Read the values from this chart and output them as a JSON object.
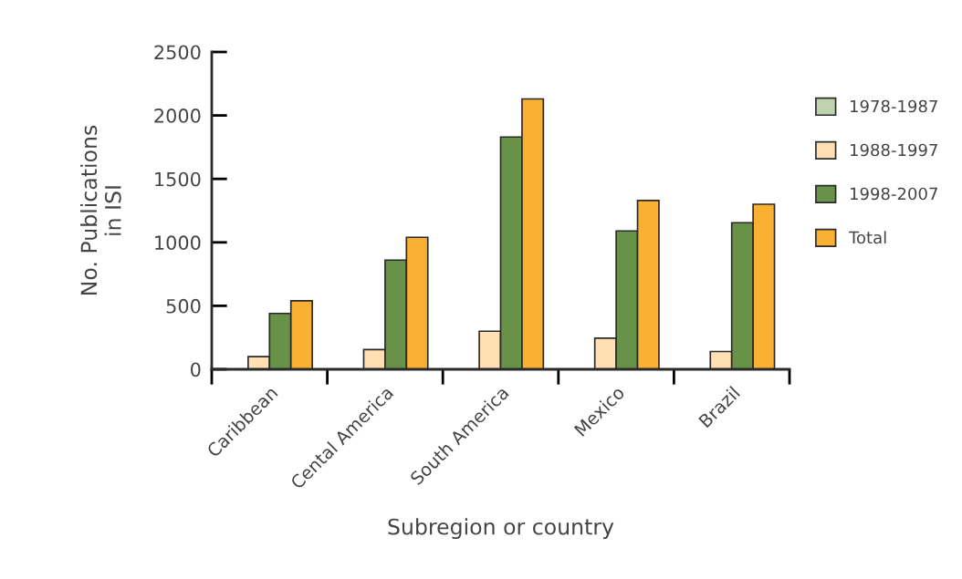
{
  "chart_data": {
    "type": "bar",
    "xlabel": "Subregion or country",
    "ylabel": "No. Publications\nin ISI",
    "categories": [
      "Caribbean",
      "Cental America",
      "South America",
      "Mexico",
      "Brazil"
    ],
    "series": [
      {
        "name": "1978-1987",
        "color": "#c0d3b0",
        "values": [
          null,
          null,
          null,
          null,
          null
        ]
      },
      {
        "name": "1988-1997",
        "color": "#ffdfb3",
        "values": [
          100,
          155,
          300,
          245,
          140
        ]
      },
      {
        "name": "1998-2007",
        "color": "#679247",
        "values": [
          440,
          860,
          1830,
          1090,
          1155
        ]
      },
      {
        "name": "Total",
        "color": "#fab033",
        "values": [
          540,
          1040,
          2130,
          1330,
          1300
        ]
      }
    ],
    "ylim": [
      0,
      2500
    ],
    "yticks": [
      0,
      500,
      1000,
      1500,
      2000,
      2500
    ],
    "grid": false,
    "legend": "right"
  }
}
